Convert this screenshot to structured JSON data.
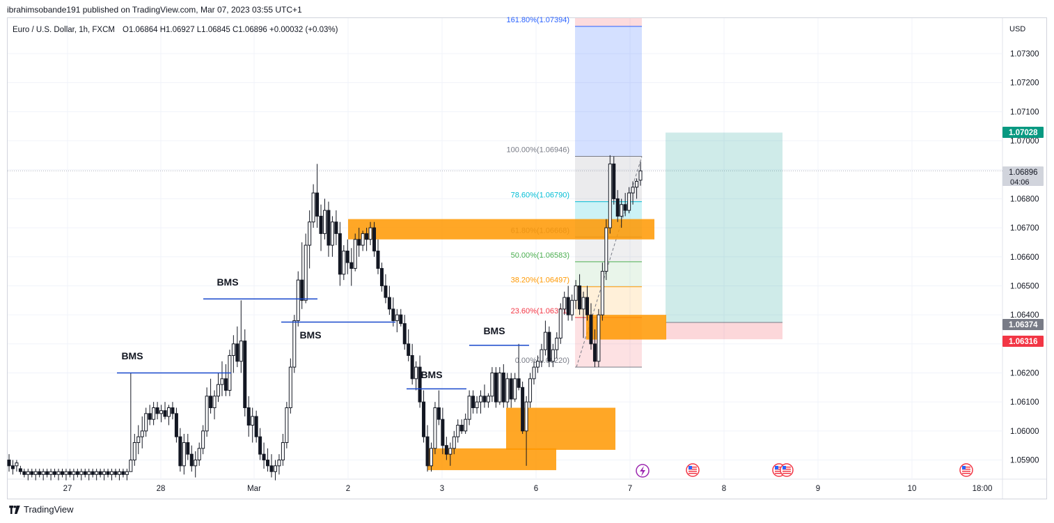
{
  "header": {
    "published": "ibrahimsobande191 published on TradingView.com, Mar 07, 2023 03:55 UTC+1"
  },
  "legend": {
    "symbol": "Euro / U.S. Dollar, 1h, FXCM",
    "ohlc": "O1.06864 H1.06927 L1.06845 C1.06896 +0.00032 (+0.03%)"
  },
  "footer": {
    "brand": "TradingView"
  },
  "colors": {
    "up": "#131722",
    "down": "#131722",
    "bms_line": "#1848cc",
    "zone": "#ff9800",
    "fib_blue": "#2962ff",
    "target": "#26a69a",
    "stop": "#f23645"
  },
  "chart_data": {
    "type": "candlestick",
    "currency": "USD",
    "y_ticks": [
      "1.07300",
      "1.07200",
      "1.07100",
      "1.07000",
      "1.06900",
      "1.06800",
      "1.06700",
      "1.06600",
      "1.06500",
      "1.06400",
      "1.06300",
      "1.06200",
      "1.06100",
      "1.06000",
      "1.05900"
    ],
    "ylim": [
      1.0585,
      1.0745
    ],
    "x_ticks": [
      "27",
      "28",
      "Mar",
      "2",
      "3",
      "6",
      "7",
      "8",
      "9",
      "10",
      "18:00"
    ],
    "price_labels": [
      {
        "value": "1.07028",
        "color": "#089981",
        "role": "target"
      },
      {
        "value": "1.06896",
        "sub": "04:06",
        "color": "#d1d4dc",
        "role": "last"
      },
      {
        "value": "1.06374",
        "color": "#787b86",
        "role": "entry"
      },
      {
        "value": "1.06316",
        "color": "#f23645",
        "role": "stop"
      }
    ],
    "fib_levels": [
      {
        "label": "161.80%(1.07394)",
        "value": 1.07394,
        "color": "#2962ff"
      },
      {
        "label": "100.00%(1.06946)",
        "value": 1.06946,
        "color": "#787b86"
      },
      {
        "label": "78.60%(1.06790)",
        "value": 1.0679,
        "color": "#00bcd4"
      },
      {
        "label": "61.80%(1.06668)",
        "value": 1.06668,
        "color": "#787b86"
      },
      {
        "label": "50.00%(1.06583)",
        "value": 1.06583,
        "color": "#4caf50"
      },
      {
        "label": "38.20%(1.06497)",
        "value": 1.06497,
        "color": "#ff9800"
      },
      {
        "label": "23.60%(1.06391)",
        "value": 1.06391,
        "color": "#f23645"
      },
      {
        "label": "0.00%(1.06220)",
        "value": 1.0622,
        "color": "#787b86"
      }
    ],
    "annotations": [
      {
        "text": "BMS"
      },
      {
        "text": "BMS"
      },
      {
        "text": "BMS"
      },
      {
        "text": "BMS"
      },
      {
        "text": "BMS"
      },
      {
        "text": "BMS"
      }
    ],
    "candles": [
      [
        1.059,
        1.0592,
        1.0586,
        1.0588
      ],
      [
        1.0588,
        1.059,
        1.0585,
        1.0587
      ],
      [
        1.0588,
        1.059,
        1.0586,
        1.0589
      ],
      [
        1.0587,
        1.0588,
        1.0585,
        1.0586
      ],
      [
        1.0586,
        1.0587,
        1.0584,
        1.0585
      ],
      [
        1.0585,
        1.0587,
        1.0583,
        1.0586
      ],
      [
        1.0586,
        1.0587,
        1.0584,
        1.0585
      ],
      [
        1.0585,
        1.0587,
        1.0583,
        1.0586
      ],
      [
        1.0586,
        1.0587,
        1.0584,
        1.0585
      ],
      [
        1.0585,
        1.0587,
        1.0583,
        1.0586
      ],
      [
        1.0586,
        1.0587,
        1.0584,
        1.0585
      ],
      [
        1.0585,
        1.0587,
        1.0583,
        1.0586
      ],
      [
        1.0586,
        1.0587,
        1.0584,
        1.0585
      ],
      [
        1.0585,
        1.0587,
        1.0583,
        1.0586
      ],
      [
        1.0586,
        1.0587,
        1.0584,
        1.0585
      ],
      [
        1.0585,
        1.0587,
        1.0583,
        1.0586
      ],
      [
        1.0586,
        1.0587,
        1.0584,
        1.0585
      ],
      [
        1.0585,
        1.0587,
        1.0583,
        1.0586
      ],
      [
        1.0586,
        1.0587,
        1.0584,
        1.0585
      ],
      [
        1.0585,
        1.0587,
        1.0583,
        1.0586
      ],
      [
        1.0586,
        1.0587,
        1.0584,
        1.0585
      ],
      [
        1.0585,
        1.0587,
        1.0583,
        1.0586
      ],
      [
        1.0586,
        1.0587,
        1.0584,
        1.0585
      ],
      [
        1.0585,
        1.0587,
        1.0583,
        1.0586
      ],
      [
        1.0586,
        1.0587,
        1.0584,
        1.0585
      ],
      [
        1.0585,
        1.0587,
        1.0583,
        1.0586
      ],
      [
        1.0586,
        1.0587,
        1.0584,
        1.0585
      ],
      [
        1.0585,
        1.0587,
        1.0583,
        1.0586
      ],
      [
        1.0586,
        1.0587,
        1.0584,
        1.0585
      ],
      [
        1.0585,
        1.0587,
        1.0583,
        1.0586
      ],
      [
        1.0586,
        1.0587,
        1.0584,
        1.0585
      ],
      [
        1.0585,
        1.0587,
        1.0583,
        1.0586
      ],
      [
        1.0586,
        1.062,
        1.0586,
        1.059
      ],
      [
        1.059,
        1.0599,
        1.0588,
        1.0596
      ],
      [
        1.0596,
        1.0602,
        1.0592,
        1.0598
      ],
      [
        1.0598,
        1.0605,
        1.0594,
        1.06
      ],
      [
        1.06,
        1.0608,
        1.0598,
        1.0606
      ],
      [
        1.0606,
        1.0609,
        1.0602,
        1.0604
      ],
      [
        1.0604,
        1.061,
        1.0602,
        1.0608
      ],
      [
        1.0608,
        1.061,
        1.0604,
        1.0606
      ],
      [
        1.0606,
        1.0609,
        1.0603,
        1.0607
      ],
      [
        1.0607,
        1.061,
        1.0604,
        1.0605
      ],
      [
        1.0605,
        1.0609,
        1.0602,
        1.0608
      ],
      [
        1.0608,
        1.061,
        1.0604,
        1.0606
      ],
      [
        1.0606,
        1.0608,
        1.0596,
        1.0598
      ],
      [
        1.0598,
        1.0601,
        1.0586,
        1.0588
      ],
      [
        1.0588,
        1.0599,
        1.0585,
        1.0596
      ],
      [
        1.0596,
        1.0599,
        1.059,
        1.0592
      ],
      [
        1.0592,
        1.0595,
        1.0586,
        1.0588
      ],
      [
        1.0588,
        1.0593,
        1.0584,
        1.059
      ],
      [
        1.059,
        1.0596,
        1.0588,
        1.0594
      ],
      [
        1.0594,
        1.0602,
        1.0592,
        1.06
      ],
      [
        1.06,
        1.0615,
        1.0598,
        1.0612
      ],
      [
        1.0612,
        1.0618,
        1.0606,
        1.0608
      ],
      [
        1.0608,
        1.0614,
        1.0604,
        1.0612
      ],
      [
        1.0612,
        1.062,
        1.061,
        1.0616
      ],
      [
        1.0616,
        1.0624,
        1.0612,
        1.0618
      ],
      [
        1.0618,
        1.0623,
        1.0612,
        1.0614
      ],
      [
        1.0614,
        1.0628,
        1.0612,
        1.0626
      ],
      [
        1.0626,
        1.0633,
        1.062,
        1.063
      ],
      [
        1.063,
        1.0636,
        1.0622,
        1.0624
      ],
      [
        1.0624,
        1.0645,
        1.062,
        1.0631
      ],
      [
        1.0631,
        1.0635,
        1.0605,
        1.0608
      ],
      [
        1.0608,
        1.0612,
        1.0598,
        1.0602
      ],
      [
        1.0602,
        1.0608,
        1.0596,
        1.0605
      ],
      [
        1.0605,
        1.0607,
        1.0596,
        1.0598
      ],
      [
        1.0598,
        1.0601,
        1.059,
        1.0592
      ],
      [
        1.0592,
        1.0596,
        1.0587,
        1.059
      ],
      [
        1.059,
        1.0594,
        1.0586,
        1.0588
      ],
      [
        1.0588,
        1.0592,
        1.0584,
        1.0586
      ],
      [
        1.0586,
        1.059,
        1.0583,
        1.0588
      ],
      [
        1.0588,
        1.0592,
        1.0585,
        1.059
      ],
      [
        1.059,
        1.0599,
        1.0588,
        1.0596
      ],
      [
        1.0596,
        1.061,
        1.0594,
        1.0608
      ],
      [
        1.0608,
        1.0625,
        1.0606,
        1.0622
      ],
      [
        1.0622,
        1.064,
        1.062,
        1.0638
      ],
      [
        1.0638,
        1.0655,
        1.0636,
        1.0652
      ],
      [
        1.0652,
        1.0665,
        1.0642,
        1.0645
      ],
      [
        1.0645,
        1.0668,
        1.0644,
        1.0664
      ],
      [
        1.0664,
        1.0676,
        1.0656,
        1.0672
      ],
      [
        1.0672,
        1.0685,
        1.067,
        1.0682
      ],
      [
        1.0682,
        1.0692,
        1.067,
        1.0674
      ],
      [
        1.0674,
        1.0678,
        1.0662,
        1.0668
      ],
      [
        1.0668,
        1.068,
        1.0666,
        1.0676
      ],
      [
        1.0676,
        1.0679,
        1.066,
        1.0664
      ],
      [
        1.0664,
        1.0674,
        1.066,
        1.0672
      ],
      [
        1.0672,
        1.0676,
        1.0664,
        1.0668
      ],
      [
        1.0668,
        1.0672,
        1.065,
        1.0654
      ],
      [
        1.0654,
        1.0664,
        1.0652,
        1.0662
      ],
      [
        1.0662,
        1.0666,
        1.0654,
        1.0658
      ],
      [
        1.0658,
        1.0663,
        1.065,
        1.0656
      ],
      [
        1.0656,
        1.0668,
        1.0655,
        1.0666
      ],
      [
        1.0666,
        1.067,
        1.066,
        1.0664
      ],
      [
        1.0664,
        1.0669,
        1.0662,
        1.0668
      ],
      [
        1.0668,
        1.067,
        1.0662,
        1.0666
      ],
      [
        1.0666,
        1.0672,
        1.0664,
        1.067
      ],
      [
        1.067,
        1.0672,
        1.066,
        1.0662
      ],
      [
        1.0662,
        1.0666,
        1.0654,
        1.0656
      ],
      [
        1.0656,
        1.0658,
        1.0648,
        1.065
      ],
      [
        1.065,
        1.0654,
        1.0644,
        1.0646
      ],
      [
        1.0646,
        1.065,
        1.064,
        1.0642
      ],
      [
        1.0642,
        1.0646,
        1.0636,
        1.0638
      ],
      [
        1.0638,
        1.0642,
        1.0634,
        1.064
      ],
      [
        1.064,
        1.0642,
        1.0636,
        1.0637
      ],
      [
        1.0637,
        1.064,
        1.0628,
        1.063
      ],
      [
        1.063,
        1.0635,
        1.0624,
        1.0626
      ],
      [
        1.0626,
        1.063,
        1.0616,
        1.0618
      ],
      [
        1.0618,
        1.0624,
        1.0614,
        1.0622
      ],
      [
        1.0622,
        1.0626,
        1.0608,
        1.061
      ],
      [
        1.061,
        1.0614,
        1.0596,
        1.0598
      ],
      [
        1.0598,
        1.0602,
        1.0586,
        1.0588
      ],
      [
        1.0588,
        1.0596,
        1.0586,
        1.0594
      ],
      [
        1.0594,
        1.061,
        1.0592,
        1.0608
      ],
      [
        1.0608,
        1.0614,
        1.0602,
        1.0604
      ],
      [
        1.0604,
        1.0608,
        1.0592,
        1.0595
      ],
      [
        1.0595,
        1.0598,
        1.059,
        1.0592
      ],
      [
        1.0592,
        1.0596,
        1.0588,
        1.0594
      ],
      [
        1.0594,
        1.06,
        1.0592,
        1.0598
      ],
      [
        1.0598,
        1.0604,
        1.0596,
        1.0602
      ],
      [
        1.0602,
        1.0604,
        1.0599,
        1.06
      ],
      [
        1.06,
        1.0606,
        1.0599,
        1.0604
      ],
      [
        1.0604,
        1.0614,
        1.0602,
        1.0612
      ],
      [
        1.0612,
        1.0614,
        1.0606,
        1.0608
      ],
      [
        1.0608,
        1.0612,
        1.0606,
        1.061
      ],
      [
        1.061,
        1.0614,
        1.0606,
        1.0612
      ],
      [
        1.0612,
        1.0616,
        1.0608,
        1.061
      ],
      [
        1.061,
        1.0613,
        1.0608,
        1.0612
      ],
      [
        1.0612,
        1.0622,
        1.061,
        1.062
      ],
      [
        1.062,
        1.0622,
        1.0608,
        1.061
      ],
      [
        1.061,
        1.0622,
        1.0609,
        1.062
      ],
      [
        1.062,
        1.0623,
        1.0608,
        1.061
      ],
      [
        1.061,
        1.062,
        1.0608,
        1.0618
      ],
      [
        1.0618,
        1.062,
        1.0608,
        1.0611
      ],
      [
        1.0611,
        1.062,
        1.061,
        1.0618
      ],
      [
        1.0618,
        1.063,
        1.0614,
        1.0615
      ],
      [
        1.0615,
        1.0617,
        1.0599,
        1.06
      ],
      [
        1.06,
        1.0612,
        1.0588,
        1.061
      ],
      [
        1.061,
        1.062,
        1.0608,
        1.0618
      ],
      [
        1.0618,
        1.0624,
        1.0616,
        1.0622
      ],
      [
        1.0622,
        1.0626,
        1.062,
        1.0624
      ],
      [
        1.0624,
        1.063,
        1.0622,
        1.0628
      ],
      [
        1.0628,
        1.0638,
        1.0626,
        1.0634
      ],
      [
        1.0634,
        1.0636,
        1.0622,
        1.0624
      ],
      [
        1.0624,
        1.063,
        1.0622,
        1.0628
      ],
      [
        1.0628,
        1.0634,
        1.0625,
        1.0632
      ],
      [
        1.0632,
        1.0644,
        1.063,
        1.0642
      ],
      [
        1.0642,
        1.0648,
        1.064,
        1.0646
      ],
      [
        1.0646,
        1.065,
        1.0638,
        1.064
      ],
      [
        1.064,
        1.0647,
        1.0638,
        1.0645
      ],
      [
        1.0645,
        1.0652,
        1.0642,
        1.065
      ],
      [
        1.065,
        1.0654,
        1.064,
        1.0642
      ],
      [
        1.0642,
        1.0648,
        1.0632,
        1.0646
      ],
      [
        1.0646,
        1.065,
        1.0638,
        1.064
      ],
      [
        1.064,
        1.0644,
        1.0628,
        1.063
      ],
      [
        1.063,
        1.0635,
        1.0622,
        1.0624
      ],
      [
        1.0624,
        1.0642,
        1.0622,
        1.064
      ],
      [
        1.064,
        1.0658,
        1.0638,
        1.0655
      ],
      [
        1.0655,
        1.0673,
        1.0652,
        1.067
      ],
      [
        1.067,
        1.0695,
        1.0668,
        1.0692
      ],
      [
        1.0692,
        1.06946,
        1.0678,
        1.068
      ],
      [
        1.068,
        1.0683,
        1.0672,
        1.0674
      ],
      [
        1.0674,
        1.068,
        1.067,
        1.0678
      ],
      [
        1.0678,
        1.0682,
        1.0674,
        1.0676
      ],
      [
        1.0676,
        1.0684,
        1.0675,
        1.0682
      ],
      [
        1.0682,
        1.0686,
        1.0678,
        1.0684
      ],
      [
        1.0684,
        1.0687,
        1.068,
        1.0686
      ],
      [
        1.06864,
        1.06927,
        1.06845,
        1.06896
      ]
    ]
  }
}
